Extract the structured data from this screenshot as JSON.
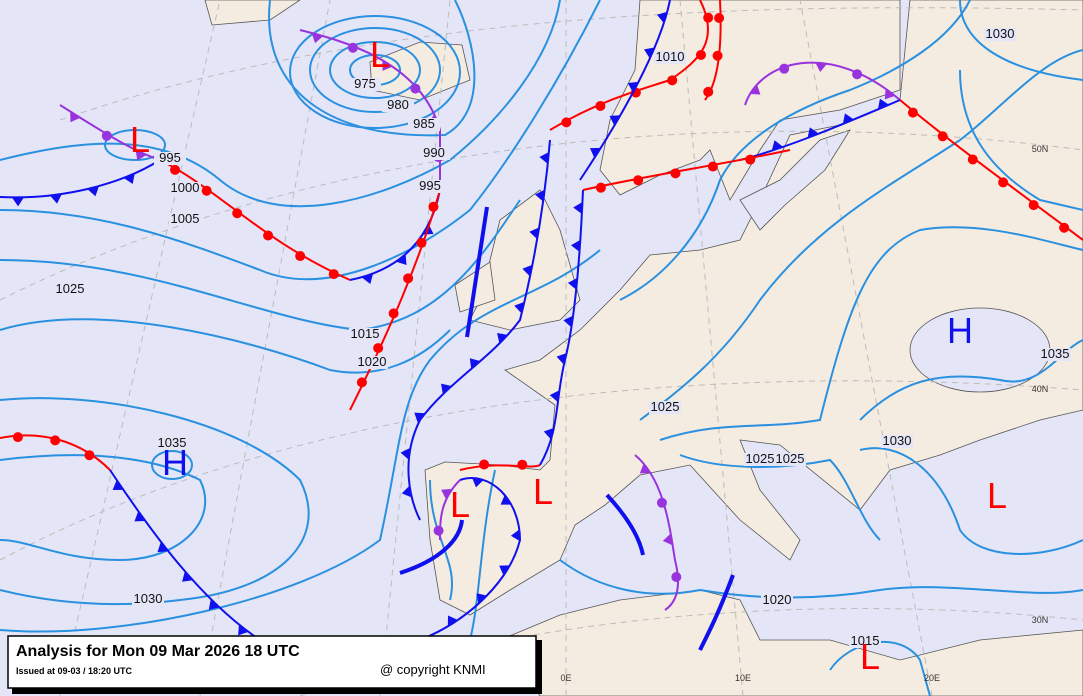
{
  "title_box": {
    "title": "Analysis for Mon 09 Mar 2026 18 UTC",
    "issued": "Issued at 09-03 / 18:20 UTC",
    "copyright": "@ copyright KNMI"
  },
  "isobar_labels": [
    "975",
    "980",
    "985",
    "990",
    "995",
    "995",
    "1000",
    "1005",
    "1010",
    "1015",
    "1020",
    "1025",
    "1025",
    "1025",
    "1025",
    "1030",
    "1030",
    "1030",
    "1035",
    "1035",
    "1020",
    "1015"
  ],
  "pressure_centers": [
    {
      "label": "L",
      "color": "#ff0000"
    },
    {
      "label": "L",
      "color": "#ff0000"
    },
    {
      "label": "H",
      "color": "#1010ee"
    },
    {
      "label": "L",
      "color": "#ff0000"
    },
    {
      "label": "L",
      "color": "#ff0000"
    },
    {
      "label": "H",
      "color": "#1010ee"
    },
    {
      "label": "L",
      "color": "#ff0000"
    },
    {
      "label": "L",
      "color": "#ff0000"
    }
  ],
  "graticule_labels": [
    "50N",
    "40N",
    "30N",
    "0E",
    "10E",
    "20E"
  ]
}
